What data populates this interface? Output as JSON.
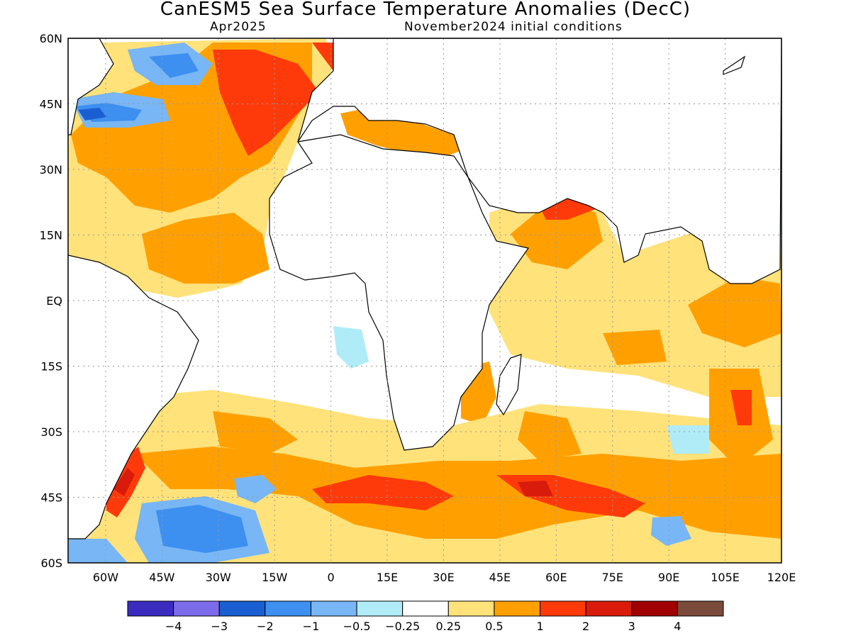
{
  "title": "CanESM5 Sea Surface Temperature Anomalies (DecC)",
  "subtitle_left": "Apr2025",
  "subtitle_right": "November2024 initial conditions",
  "map": {
    "lon_range": [
      -70,
      120
    ],
    "lat_range": [
      -60,
      60
    ],
    "lat_labels": [
      {
        "lat": 60,
        "text": "60N"
      },
      {
        "lat": 45,
        "text": "45N"
      },
      {
        "lat": 30,
        "text": "30N"
      },
      {
        "lat": 15,
        "text": "15N"
      },
      {
        "lat": 0,
        "text": "EQ"
      },
      {
        "lat": -15,
        "text": "15S"
      },
      {
        "lat": -30,
        "text": "30S"
      },
      {
        "lat": -45,
        "text": "45S"
      },
      {
        "lat": -60,
        "text": "60S"
      }
    ],
    "lon_labels": [
      {
        "lon": -60,
        "text": "60W"
      },
      {
        "lon": -45,
        "text": "45W"
      },
      {
        "lon": -30,
        "text": "30W"
      },
      {
        "lon": -15,
        "text": "15W"
      },
      {
        "lon": 0,
        "text": "0"
      },
      {
        "lon": 15,
        "text": "15E"
      },
      {
        "lon": 30,
        "text": "30E"
      },
      {
        "lon": 45,
        "text": "45E"
      },
      {
        "lon": 60,
        "text": "60E"
      },
      {
        "lon": 75,
        "text": "75E"
      },
      {
        "lon": 90,
        "text": "90E"
      },
      {
        "lon": 105,
        "text": "105E"
      },
      {
        "lon": 120,
        "text": "120E"
      }
    ]
  },
  "colorbar": {
    "colors": [
      "#3b2bbf",
      "#7c6cea",
      "#1a5fd1",
      "#3d8ff0",
      "#78b6f5",
      "#b0ecf7",
      "#ffffff",
      "#ffe27a",
      "#ffa000",
      "#ff3a0a",
      "#d81b0b",
      "#a00000",
      "#7a4a3a"
    ],
    "labels": [
      "−4",
      "−3",
      "−2",
      "−1",
      "−0.5",
      "−0.25",
      "0.25",
      "0.5",
      "1",
      "2",
      "3",
      "4"
    ]
  }
}
